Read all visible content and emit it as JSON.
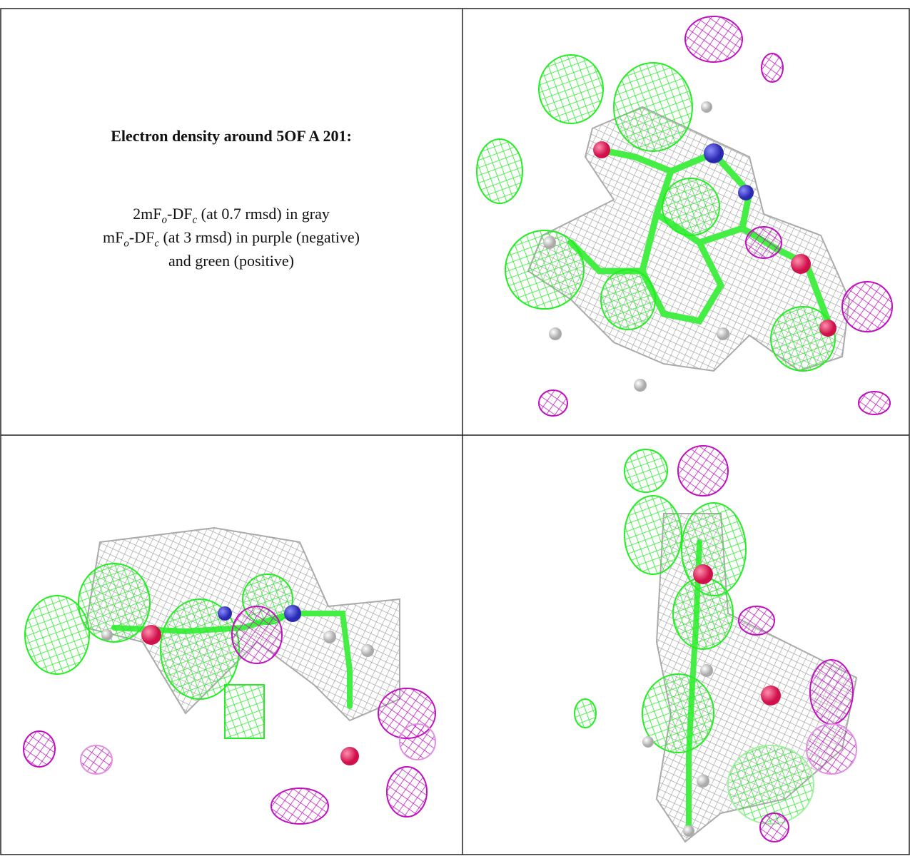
{
  "caption": {
    "title": "Electron density around 5OF A 201:",
    "lines": [
      [
        "2mF",
        "o",
        "-DF",
        "c",
        " (at 0.7 rmsd) in gray"
      ],
      [
        "mF",
        "o",
        "-DF",
        "c",
        " (at 3 rmsd) in purple (negative)"
      ],
      [
        "and green (positive)"
      ]
    ]
  }
}
